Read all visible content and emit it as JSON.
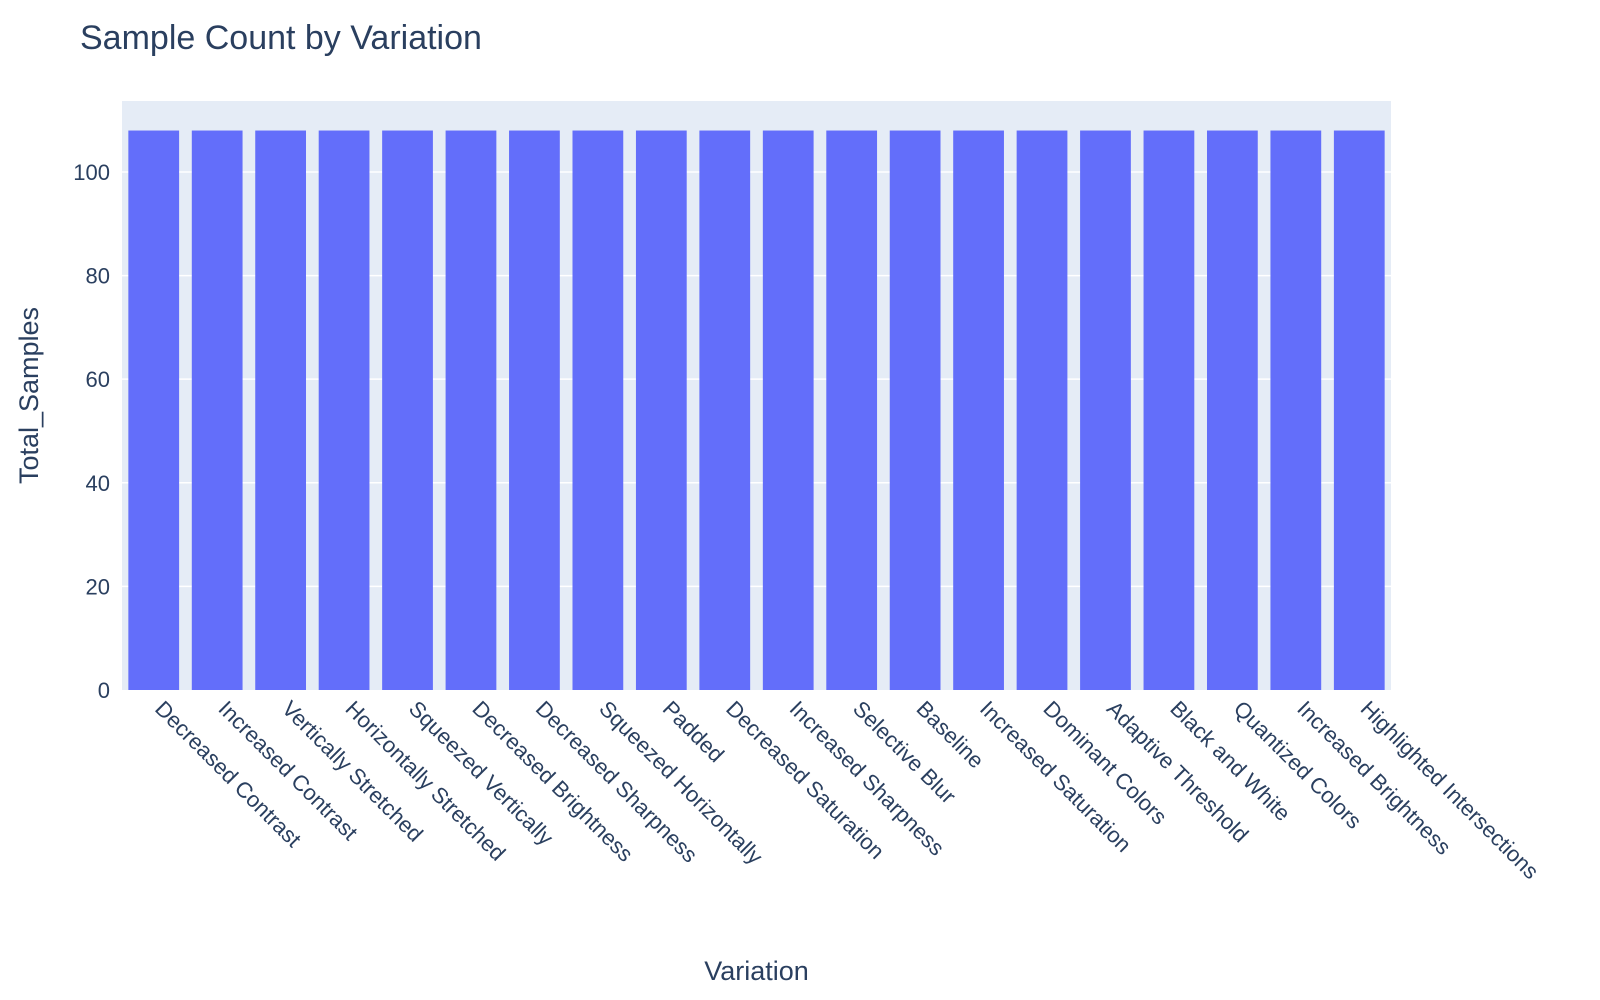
{
  "chart_data": {
    "type": "bar",
    "title": "Sample Count by Variation",
    "xlabel": "Variation",
    "ylabel": "Total_Samples",
    "categories": [
      "Decreased Contrast",
      "Increased Contrast",
      "Vertically Stretched",
      "Horizontally Stretched",
      "Squeezed Vertically",
      "Decreased Brightness",
      "Decreased Sharpness",
      "Squeezed Horizontally",
      "Padded",
      "Decreased Saturation",
      "Increased Sharpness",
      "Selective Blur",
      "Baseline",
      "Increased Saturation",
      "Dominant Colors",
      "Adaptive Threshold",
      "Black and White",
      "Quantized Colors",
      "Increased Brightness",
      "Highlighted Intersections"
    ],
    "values": [
      108,
      108,
      108,
      108,
      108,
      108,
      108,
      108,
      108,
      108,
      108,
      108,
      108,
      108,
      108,
      108,
      108,
      108,
      108,
      108
    ],
    "ylim": [
      0,
      113.7
    ],
    "yticks": [
      0,
      20,
      40,
      60,
      80,
      100
    ],
    "grid": true,
    "bar_color": "#636efa",
    "plot_background": "#e5ecf6",
    "grid_color": "#ffffff"
  }
}
